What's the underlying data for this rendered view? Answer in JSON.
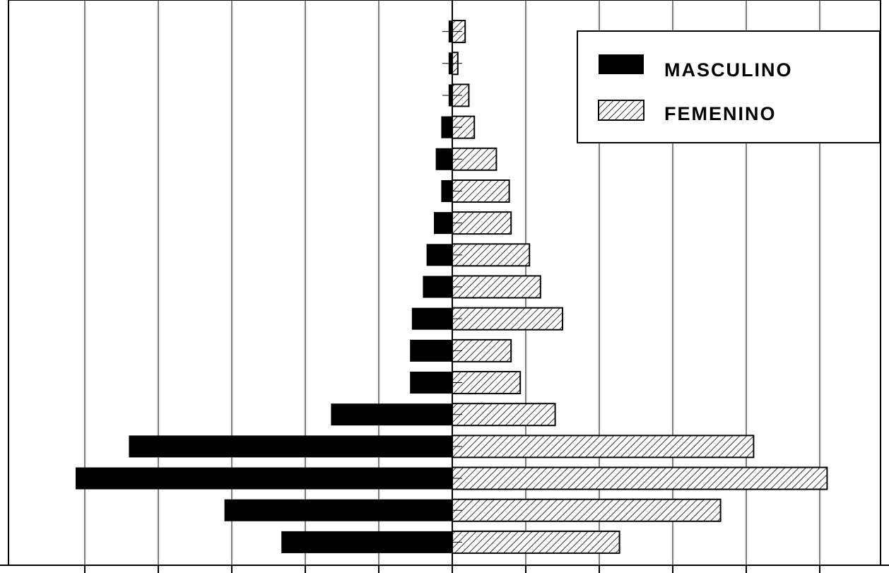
{
  "chart_data": {
    "type": "bar",
    "orientation": "horizontal",
    "subtype": "population-pyramid",
    "title": "",
    "xlabel": "",
    "ylabel": "",
    "grid": true,
    "legend_position": "top-right",
    "series": [
      {
        "name": "MASCULINO",
        "color": "#000000",
        "fill": "solid",
        "values": [
          0.1,
          0.1,
          0.1,
          0.3,
          0.45,
          0.3,
          0.5,
          0.7,
          0.8,
          1.1,
          1.15,
          1.15,
          3.3,
          8.8,
          10.25,
          6.2,
          4.65
        ]
      },
      {
        "name": "FEMENINO",
        "color": "#000000",
        "fill": "hatched",
        "values": [
          0.35,
          0.15,
          0.45,
          0.6,
          1.2,
          1.55,
          1.6,
          2.1,
          2.4,
          3.0,
          1.6,
          1.85,
          2.8,
          8.2,
          10.2,
          7.3,
          4.55
        ]
      }
    ],
    "xlim": [
      -12,
      12
    ],
    "legend": [
      {
        "label": "MASCULINO",
        "style": "solid"
      },
      {
        "label": "FEMENINO",
        "style": "hatched"
      }
    ]
  }
}
